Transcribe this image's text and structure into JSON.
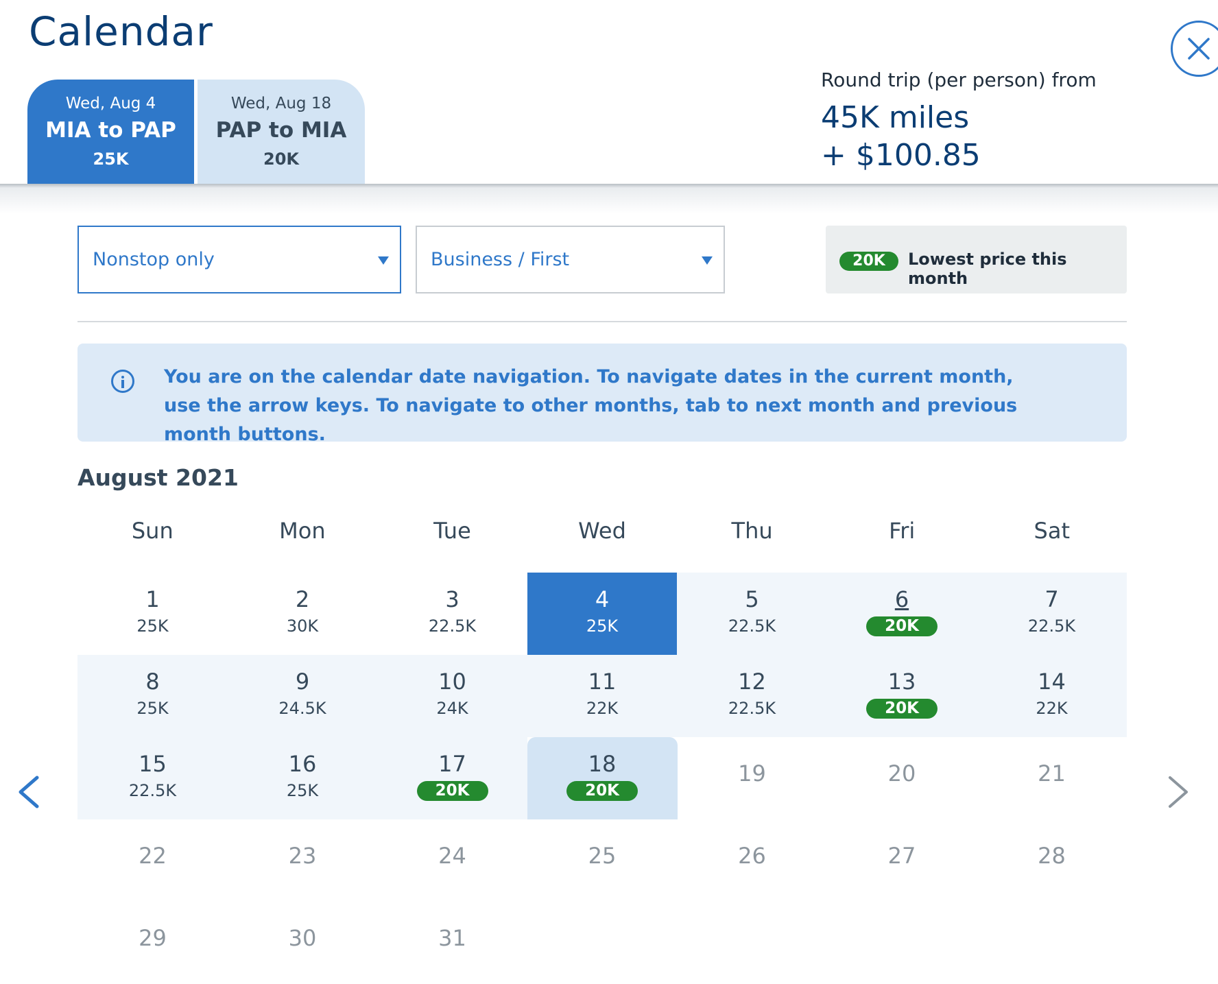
{
  "header": {
    "title": "Calendar",
    "close_icon": "close-circle-icon"
  },
  "trip_tabs": [
    {
      "date": "Wed, Aug 4",
      "route": "MIA to PAP",
      "price": "25K",
      "active": true
    },
    {
      "date": "Wed, Aug 18",
      "route": "PAP to MIA",
      "price": "20K",
      "active": false
    }
  ],
  "round_trip": {
    "label": "Round trip (per person) from",
    "miles": "45K miles",
    "cash": "+ $100.85"
  },
  "filters": {
    "stops": "Nonstop only",
    "cabin": "Business / First"
  },
  "legend": {
    "pill": "20K",
    "text": "Lowest price this month"
  },
  "info": {
    "icon": "info-icon",
    "text": "You are on the calendar date navigation. To navigate dates in the current month, use the arrow keys. To navigate to other months, tab to next month and previous month buttons."
  },
  "calendar": {
    "month": "August 2021",
    "weekdays": [
      "Sun",
      "Mon",
      "Tue",
      "Wed",
      "Thu",
      "Fri",
      "Sat"
    ],
    "first_weekday": 0,
    "days": [
      {
        "day": "1",
        "price": "25K"
      },
      {
        "day": "2",
        "price": "30K"
      },
      {
        "day": "3",
        "price": "22.5K"
      },
      {
        "day": "4",
        "price": "25K",
        "state": "selected"
      },
      {
        "day": "5",
        "price": "22.5K"
      },
      {
        "day": "6",
        "price": "20K",
        "lowest": true,
        "underline": true
      },
      {
        "day": "7",
        "price": "22.5K"
      },
      {
        "day": "8",
        "price": "25K"
      },
      {
        "day": "9",
        "price": "24.5K"
      },
      {
        "day": "10",
        "price": "24K"
      },
      {
        "day": "11",
        "price": "22K"
      },
      {
        "day": "12",
        "price": "22.5K"
      },
      {
        "day": "13",
        "price": "20K",
        "lowest": true
      },
      {
        "day": "14",
        "price": "22K"
      },
      {
        "day": "15",
        "price": "22.5K"
      },
      {
        "day": "16",
        "price": "25K"
      },
      {
        "day": "17",
        "price": "20K",
        "lowest": true
      },
      {
        "day": "18",
        "price": "20K",
        "lowest": true,
        "state": "return"
      },
      {
        "day": "19"
      },
      {
        "day": "20"
      },
      {
        "day": "21"
      },
      {
        "day": "22"
      },
      {
        "day": "23"
      },
      {
        "day": "24"
      },
      {
        "day": "25"
      },
      {
        "day": "26"
      },
      {
        "day": "27"
      },
      {
        "day": "28"
      },
      {
        "day": "29"
      },
      {
        "day": "30"
      },
      {
        "day": "31"
      }
    ],
    "prev_icon": "chevron-left-icon",
    "next_icon": "chevron-right-icon"
  },
  "colors": {
    "accent": "#2f78c9",
    "navy": "#0b3d73",
    "lowest_green": "#248a2f",
    "available_bg": "#f1f6fb",
    "return_bg": "#d3e4f4"
  }
}
